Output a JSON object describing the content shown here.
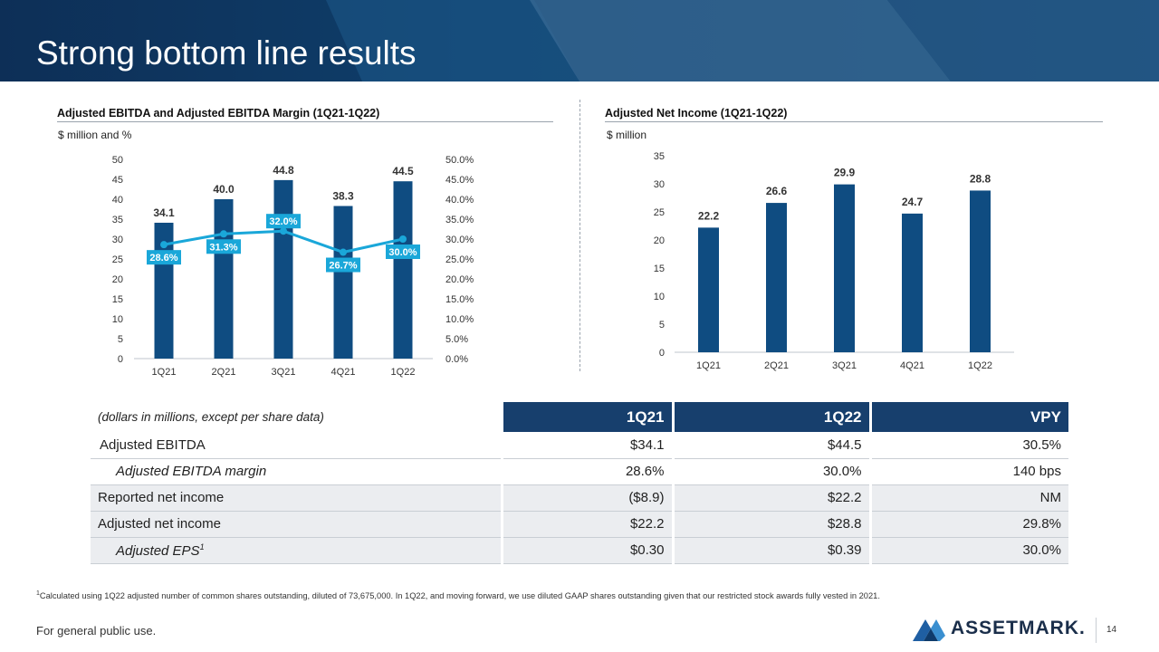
{
  "header": {
    "title": "Strong bottom line results"
  },
  "left_chart": {
    "title": "Adjusted EBITDA and Adjusted EBITDA Margin (1Q21-1Q22)",
    "unit": "$ million and %"
  },
  "right_chart": {
    "title": "Adjusted Net Income (1Q21-1Q22)",
    "unit": "$ million"
  },
  "chart_data": [
    {
      "type": "bar",
      "title": "Adjusted EBITDA and Adjusted EBITDA Margin (1Q21-1Q22)",
      "categories": [
        "1Q21",
        "2Q21",
        "3Q21",
        "4Q21",
        "1Q22"
      ],
      "series": [
        {
          "type": "bar",
          "axis": "left",
          "values": [
            34.1,
            40.0,
            44.8,
            38.3,
            44.5
          ],
          "labels": [
            "34.1",
            "40.0",
            "44.8",
            "38.3",
            "44.5"
          ],
          "color": "#0f4c81"
        },
        {
          "type": "line",
          "axis": "right",
          "values": [
            28.6,
            31.3,
            32.0,
            26.7,
            30.0
          ],
          "labels": [
            "28.6%",
            "31.3%",
            "32.0%",
            "26.7%",
            "30.0%"
          ],
          "color": "#1aa7d9"
        }
      ],
      "ylim": [
        0,
        50
      ],
      "yticks": [
        "0",
        "5",
        "10",
        "15",
        "20",
        "25",
        "30",
        "35",
        "40",
        "45",
        "50"
      ],
      "y2lim": [
        0,
        50
      ],
      "y2ticks": [
        "0.0%",
        "5.0%",
        "10.0%",
        "15.0%",
        "20.0%",
        "25.0%",
        "30.0%",
        "35.0%",
        "40.0%",
        "45.0%",
        "50.0%"
      ],
      "grid": false
    },
    {
      "type": "bar",
      "title": "Adjusted Net Income (1Q21-1Q22)",
      "categories": [
        "1Q21",
        "2Q21",
        "3Q21",
        "4Q21",
        "1Q22"
      ],
      "values": [
        22.2,
        26.6,
        29.9,
        24.7,
        28.8
      ],
      "labels": [
        "22.2",
        "26.6",
        "29.9",
        "24.7",
        "28.8"
      ],
      "color": "#0f4c81",
      "ylim": [
        0,
        35
      ],
      "yticks": [
        "0",
        "5",
        "10",
        "15",
        "20",
        "25",
        "30",
        "35"
      ],
      "grid": false
    }
  ],
  "table": {
    "note": "(dollars in millions, except per share data)",
    "headers": [
      "1Q21",
      "1Q22",
      "VPY"
    ],
    "rows": [
      {
        "label": "Adjusted EBITDA",
        "values": [
          "$34.1",
          "$44.5",
          "30.5%"
        ]
      },
      {
        "label": "Adjusted EBITDA margin",
        "values": [
          "28.6%",
          "30.0%",
          "140 bps"
        ]
      },
      {
        "label": "Reported net income",
        "values": [
          "($8.9)",
          "$22.2",
          "NM"
        ]
      },
      {
        "label": "Adjusted net income",
        "values": [
          "$22.2",
          "$28.8",
          "29.8%"
        ]
      },
      {
        "label": "Adjusted EPS",
        "sup": "1",
        "values": [
          "$0.30",
          "$0.39",
          "30.0%"
        ]
      }
    ]
  },
  "footnote": {
    "marker": "1",
    "text": "Calculated using 1Q22 adjusted number of common shares outstanding, diluted of 73,675,000. In 1Q22, and moving forward, we use diluted GAAP shares outstanding given that our restricted stock awards fully vested in 2021."
  },
  "footer": {
    "disclaimer": "For general public use.",
    "logo_text": "ASSETMARK.",
    "page_number": "14"
  }
}
